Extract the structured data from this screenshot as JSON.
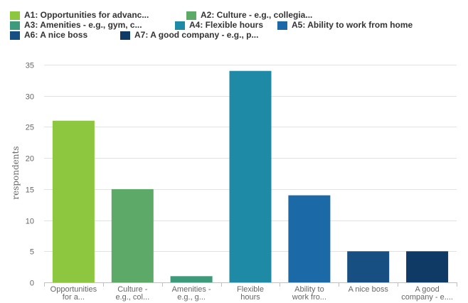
{
  "chart_data": {
    "type": "bar",
    "title": "",
    "xlabel": "",
    "ylabel": "respondents",
    "ylim": [
      0,
      35
    ],
    "yticks": [
      0,
      5,
      10,
      15,
      20,
      25,
      30,
      35
    ],
    "grid": true,
    "legend_position": "top",
    "categories": [
      [
        "Opportunities",
        "for a..."
      ],
      [
        "Culture -",
        "e.g., col..."
      ],
      [
        "Amenities -",
        "e.g., g..."
      ],
      [
        "Flexible",
        "hours"
      ],
      [
        "Ability to",
        "work fro..."
      ],
      [
        "A nice boss"
      ],
      [
        "A good",
        "company - e...."
      ]
    ],
    "values": [
      26,
      15,
      1,
      34,
      14,
      5,
      5
    ],
    "colors": [
      "#8dc63f",
      "#5daa68",
      "#3d9a7b",
      "#1f8aa5",
      "#1b6aa7",
      "#184f82",
      "#0f3a66"
    ],
    "legend": [
      "A1: Opportunities for advanc...",
      "A2: Culture - e.g., collegia...",
      "A3: Amenities - e.g., gym, c...",
      "A4: Flexible hours",
      "A5: Ability to work from home",
      "A6: A nice boss",
      "A7: A good company - e.g., p..."
    ]
  }
}
